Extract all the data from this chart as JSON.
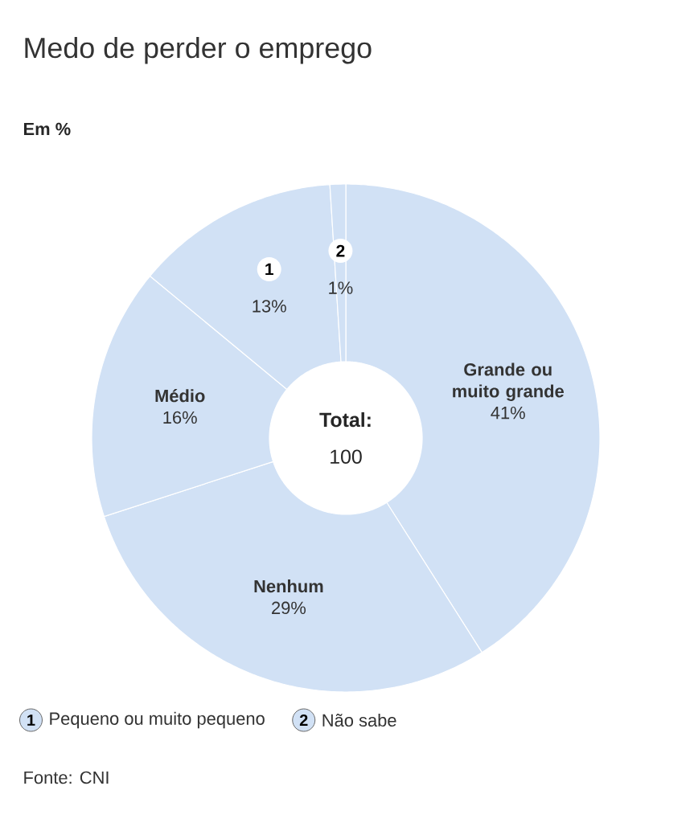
{
  "chart_data": {
    "type": "donut",
    "title": "Medo de perder o emprego",
    "subtitle": "Em %",
    "categories": [
      "Grande ou muito grande",
      "Nenhum",
      "Médio",
      "Pequeno ou muito pequeno",
      "Não sabe"
    ],
    "values": [
      41,
      29,
      16,
      13,
      1
    ],
    "colors": [
      "#d1e1f5",
      "#d1e1f5",
      "#d1e1f5",
      "#d1e1f5",
      "#d1e1f5"
    ],
    "value_labels": [
      "41%",
      "29%",
      "16%",
      "13%",
      "1%"
    ],
    "annotations": [
      {
        "text": "1",
        "x": "Pequeno ou muito pequeno"
      },
      {
        "text": "2",
        "x": "Não sabe"
      },
      "**Total:** 100",
      "Fonte: CNI"
    ],
    "legend": "bottom"
  }
}
